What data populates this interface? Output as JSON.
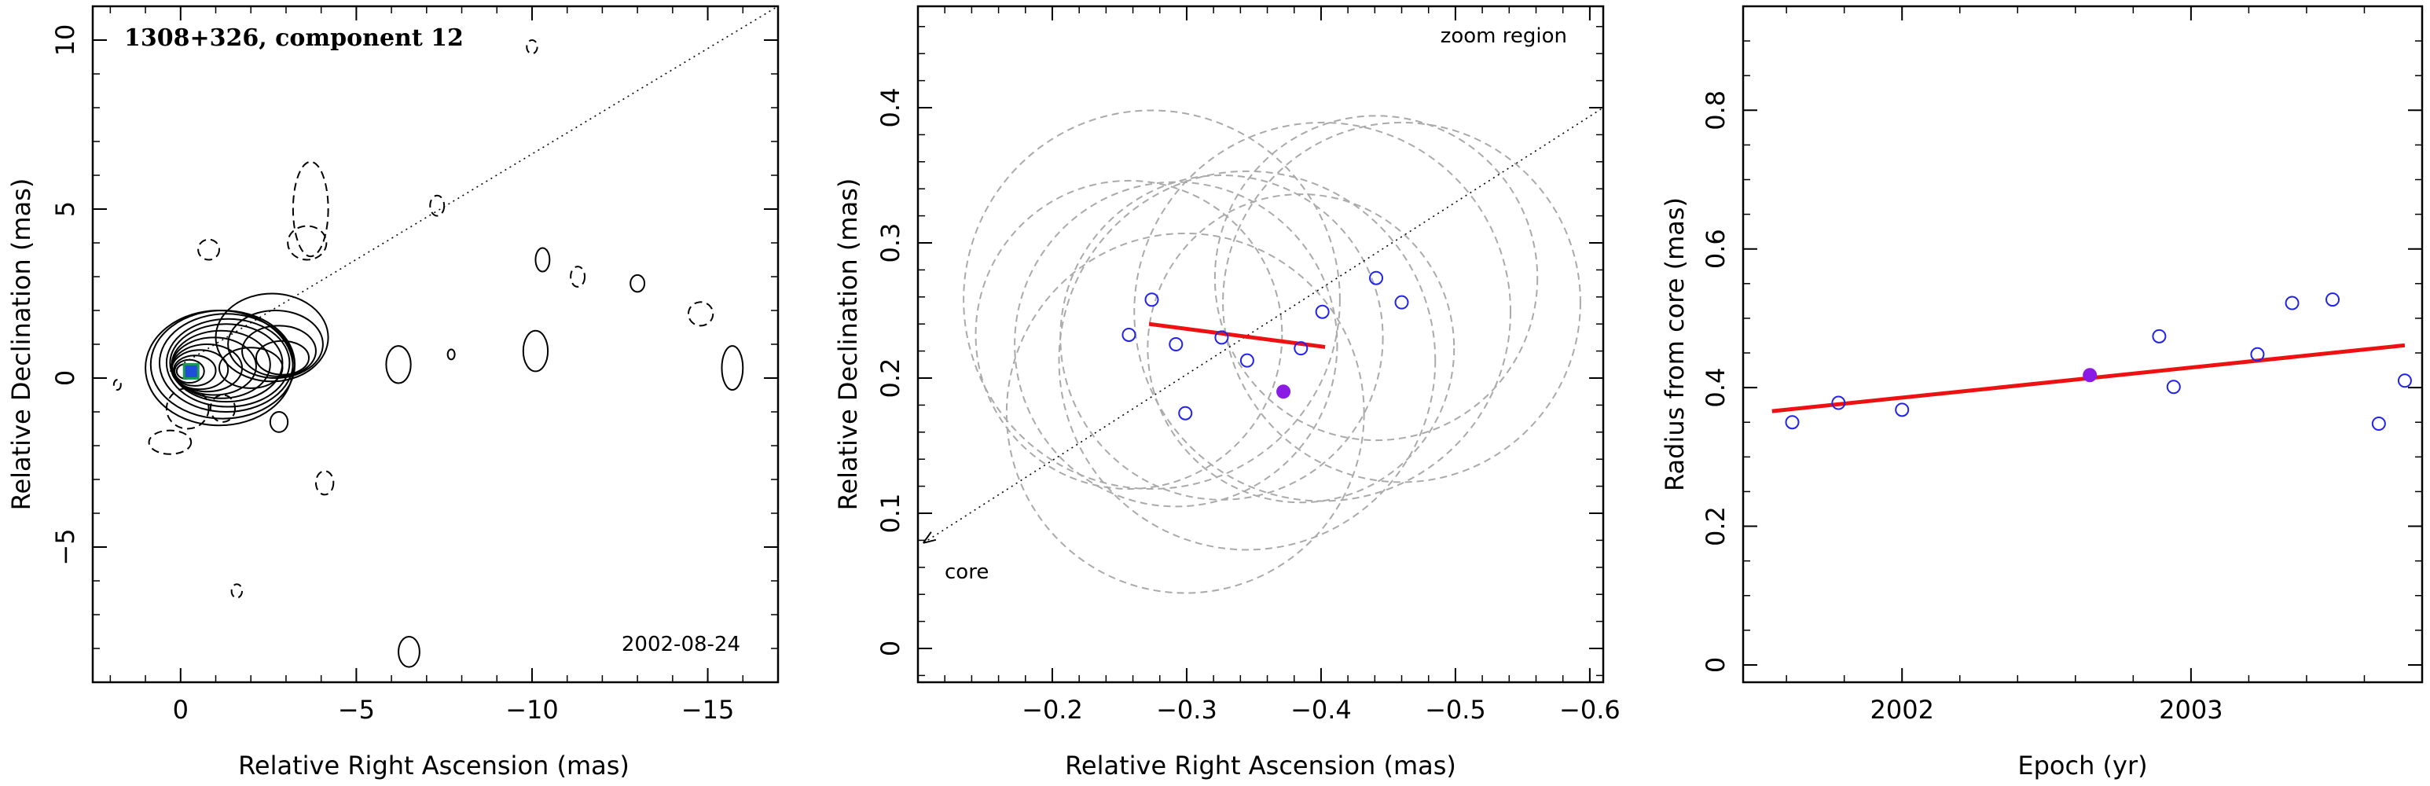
{
  "chart_data": [
    {
      "type": "contour",
      "title": "1308+326, component 12",
      "date": "2002-08-24",
      "xlabel": "Relative Right Ascension (mas)",
      "ylabel": "Relative Declination (mas)",
      "xlim": [
        2.5,
        -17
      ],
      "ylim": [
        -9,
        11
      ],
      "xticks": [
        0,
        -5,
        -10,
        -15
      ],
      "yticks": [
        -5,
        0,
        5,
        10
      ],
      "xticklabels": [
        "0",
        "−5",
        "−10",
        "−15"
      ],
      "yticklabels": [
        "−5",
        "0",
        "5",
        "10"
      ],
      "jet_direction_line": {
        "from": [
          0.3,
          0.2
        ],
        "to": [
          -17,
          11
        ]
      },
      "component_marker": {
        "x": -0.3,
        "y": 0.2,
        "color": "#1a9a55"
      },
      "contour_color": "#000000"
    },
    {
      "type": "scatter",
      "annotation_top": "zoom region",
      "annotation_core": "core",
      "xlabel": "Relative Right Ascension (mas)",
      "ylabel": "Relative Declination (mas)",
      "xlim": [
        -0.1,
        -0.61
      ],
      "ylim": [
        -0.025,
        0.475
      ],
      "xticks": [
        -0.2,
        -0.3,
        -0.4,
        -0.5,
        -0.6
      ],
      "yticks": [
        0,
        0.1,
        0.2,
        0.3,
        0.4
      ],
      "xticklabels": [
        "−0.2",
        "−0.3",
        "−0.4",
        "−0.5",
        "−0.6"
      ],
      "yticklabels": [
        "0",
        "0.1",
        "0.2",
        "0.3",
        "0.4"
      ],
      "points": [
        {
          "x": -0.257,
          "y": 0.232
        },
        {
          "x": -0.274,
          "y": 0.258
        },
        {
          "x": -0.292,
          "y": 0.225
        },
        {
          "x": -0.299,
          "y": 0.174
        },
        {
          "x": -0.326,
          "y": 0.23
        },
        {
          "x": -0.345,
          "y": 0.213
        },
        {
          "x": -0.385,
          "y": 0.222
        },
        {
          "x": -0.401,
          "y": 0.249
        },
        {
          "x": -0.441,
          "y": 0.274
        },
        {
          "x": -0.46,
          "y": 0.256
        }
      ],
      "mean_point": {
        "x": -0.372,
        "y": 0.19
      },
      "fit_line": [
        [
          -0.272,
          0.24
        ],
        [
          -0.403,
          0.223
        ]
      ],
      "error_circle_radii": [
        0.12,
        0.14
      ],
      "direction_line": {
        "from": [
          -0.104,
          0.078
        ],
        "to": [
          -0.61,
          0.4
        ]
      },
      "colors": {
        "points": "#2222ee",
        "mean": "#8a1ae6",
        "fit": "#ee1111",
        "circles": "#aaaaaa"
      }
    },
    {
      "type": "scatter",
      "xlabel": "Epoch (yr)",
      "ylabel": "Radius from core (mas)",
      "xlim": [
        2001.45,
        2003.8
      ],
      "ylim": [
        -0.025,
        0.95
      ],
      "xticks": [
        2002,
        2003
      ],
      "yticks": [
        0,
        0.2,
        0.4,
        0.6,
        0.8
      ],
      "xticklabels": [
        "2002",
        "2003"
      ],
      "yticklabels": [
        "0",
        "0.2",
        "0.4",
        "0.6",
        "0.8"
      ],
      "points": [
        {
          "x": 2001.62,
          "y": 0.35
        },
        {
          "x": 2001.78,
          "y": 0.378
        },
        {
          "x": 2002.0,
          "y": 0.368
        },
        {
          "x": 2002.89,
          "y": 0.474
        },
        {
          "x": 2002.94,
          "y": 0.401
        },
        {
          "x": 2003.23,
          "y": 0.448
        },
        {
          "x": 2003.35,
          "y": 0.522
        },
        {
          "x": 2003.49,
          "y": 0.527
        },
        {
          "x": 2003.65,
          "y": 0.348
        },
        {
          "x": 2003.74,
          "y": 0.41
        }
      ],
      "mean_point": {
        "x": 2002.65,
        "y": 0.418
      },
      "fit_line": [
        [
          2001.55,
          0.366
        ],
        [
          2003.74,
          0.461
        ]
      ],
      "colors": {
        "points": "#2222ee",
        "mean": "#8a1ae6",
        "fit": "#ee1111"
      }
    }
  ]
}
